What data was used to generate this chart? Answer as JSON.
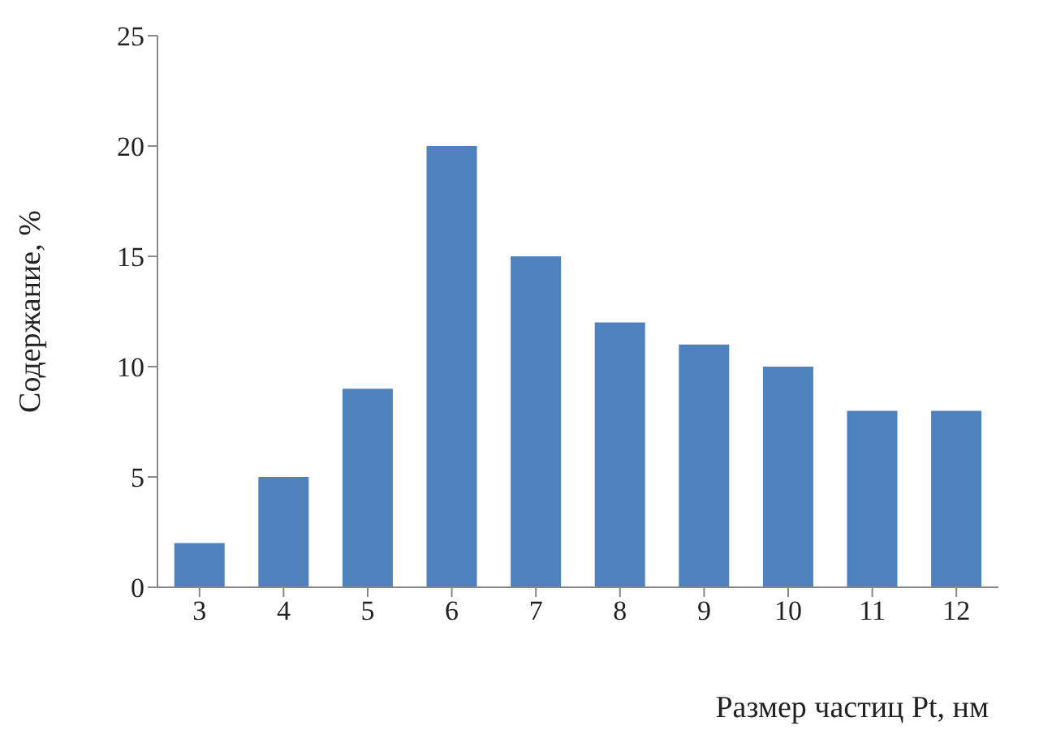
{
  "chart_data": {
    "type": "bar",
    "xlabel": "Размер частиц Pt, нм",
    "ylabel": "Содержание, %",
    "categories": [
      "3",
      "4",
      "5",
      "6",
      "7",
      "8",
      "9",
      "10",
      "11",
      "12"
    ],
    "values": [
      2,
      5,
      9,
      20,
      15,
      12,
      11,
      10,
      8,
      8
    ],
    "color": "#4f81bd",
    "ylim": [
      0,
      25
    ],
    "yticks": [
      0,
      5,
      10,
      15,
      20,
      25
    ],
    "grid": false
  }
}
